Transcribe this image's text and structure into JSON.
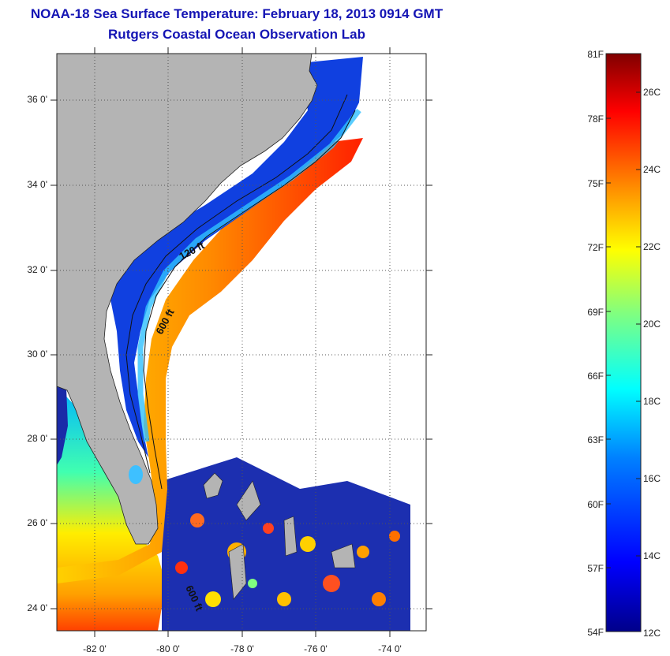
{
  "title": "NOAA-18 Sea Surface Temperature:  February 18, 2013 0914 GMT",
  "subtitle": "Rutgers Coastal Ocean Observation Lab",
  "map": {
    "lon_labels": [
      "-82 0'",
      "-80 0'",
      "-78 0'",
      "-76 0'",
      "-74 0'"
    ],
    "lat_labels": [
      "36 0'",
      "34 0'",
      "32 0'",
      "30 0'",
      "28 0'",
      "26 0'",
      "24 0'"
    ],
    "contour_labels": [
      "120 ft",
      "600 ft",
      "600 ft"
    ],
    "colors": {
      "land": "#b4b4b4",
      "grid": "#555555",
      "contour": "#111111"
    }
  },
  "colorbar": {
    "fahrenheit_labels": [
      "81F",
      "78F",
      "75F",
      "72F",
      "69F",
      "66F",
      "63F",
      "60F",
      "57F",
      "54F"
    ],
    "celsius_labels": [
      "26C",
      "24C",
      "22C",
      "20C",
      "18C",
      "16C",
      "14C",
      "12C"
    ],
    "colors": [
      "#00008a",
      "#0000ff",
      "#0080ff",
      "#00ffff",
      "#80ff80",
      "#ffff00",
      "#ff8000",
      "#ff0000",
      "#800000"
    ]
  }
}
